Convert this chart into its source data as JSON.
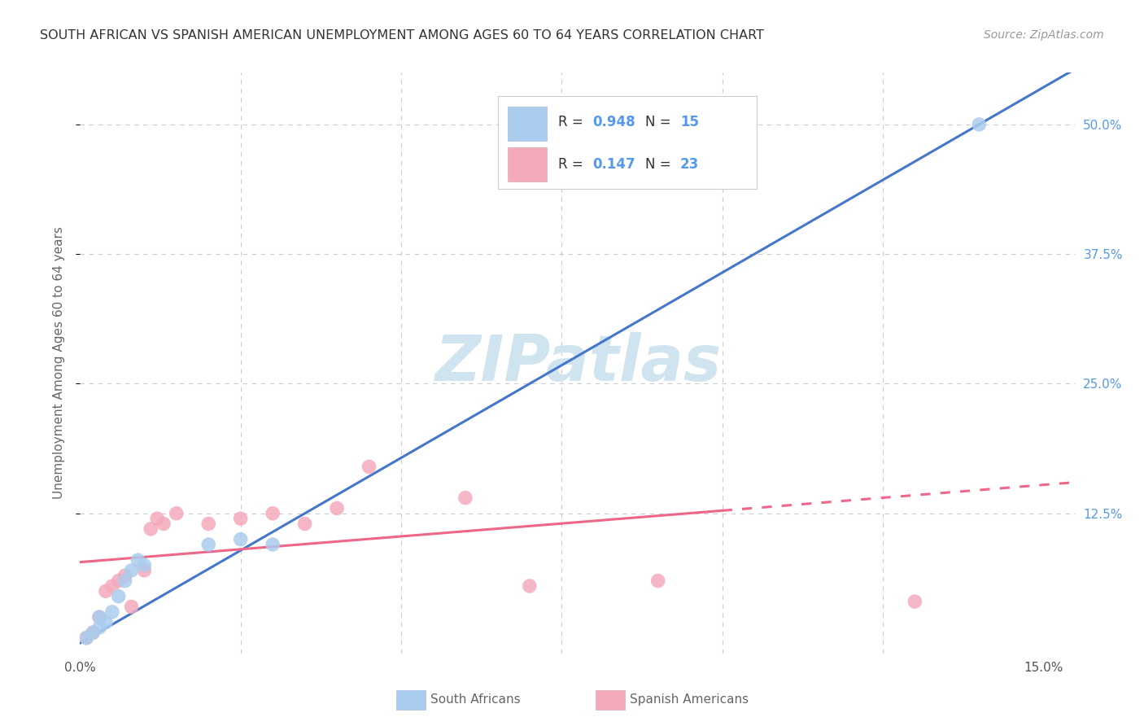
{
  "title": "SOUTH AFRICAN VS SPANISH AMERICAN UNEMPLOYMENT AMONG AGES 60 TO 64 YEARS CORRELATION CHART",
  "source": "Source: ZipAtlas.com",
  "ylabel": "Unemployment Among Ages 60 to 64 years",
  "xlim": [
    0.0,
    0.155
  ],
  "ylim": [
    -0.01,
    0.55
  ],
  "blue_R": 0.948,
  "blue_N": 15,
  "pink_R": 0.147,
  "pink_N": 23,
  "blue_color": "#AACCEE",
  "pink_color": "#F4AABB",
  "blue_line_color": "#4477CC",
  "pink_line_color": "#EE6688",
  "watermark": "ZIPatlas",
  "watermark_color": "#D0E4F0",
  "south_african_x": [
    0.001,
    0.002,
    0.003,
    0.003,
    0.004,
    0.005,
    0.006,
    0.007,
    0.008,
    0.009,
    0.01,
    0.02,
    0.025,
    0.03,
    0.14
  ],
  "south_african_y": [
    0.005,
    0.01,
    0.015,
    0.025,
    0.02,
    0.03,
    0.045,
    0.06,
    0.07,
    0.08,
    0.075,
    0.095,
    0.1,
    0.095,
    0.5
  ],
  "spanish_american_x": [
    0.001,
    0.002,
    0.003,
    0.004,
    0.005,
    0.006,
    0.007,
    0.008,
    0.01,
    0.011,
    0.012,
    0.013,
    0.015,
    0.02,
    0.025,
    0.03,
    0.035,
    0.04,
    0.045,
    0.06,
    0.07,
    0.09,
    0.13
  ],
  "spanish_american_y": [
    0.005,
    0.01,
    0.025,
    0.05,
    0.055,
    0.06,
    0.065,
    0.035,
    0.07,
    0.11,
    0.12,
    0.115,
    0.125,
    0.115,
    0.12,
    0.125,
    0.115,
    0.13,
    0.17,
    0.14,
    0.055,
    0.06,
    0.04
  ],
  "blue_line_x0": 0.0,
  "blue_line_y0": 0.0,
  "blue_line_x1": 0.14,
  "blue_line_y1": 0.5,
  "pink_line_x0": 0.0,
  "pink_line_y0": 0.078,
  "pink_line_x1_solid": 0.1,
  "pink_line_x1_end": 0.155,
  "pink_line_y1": 0.155,
  "grid_yticks": [
    0.125,
    0.25,
    0.375,
    0.5
  ],
  "grid_xticks": [
    0.025,
    0.05,
    0.075,
    0.1,
    0.125
  ]
}
